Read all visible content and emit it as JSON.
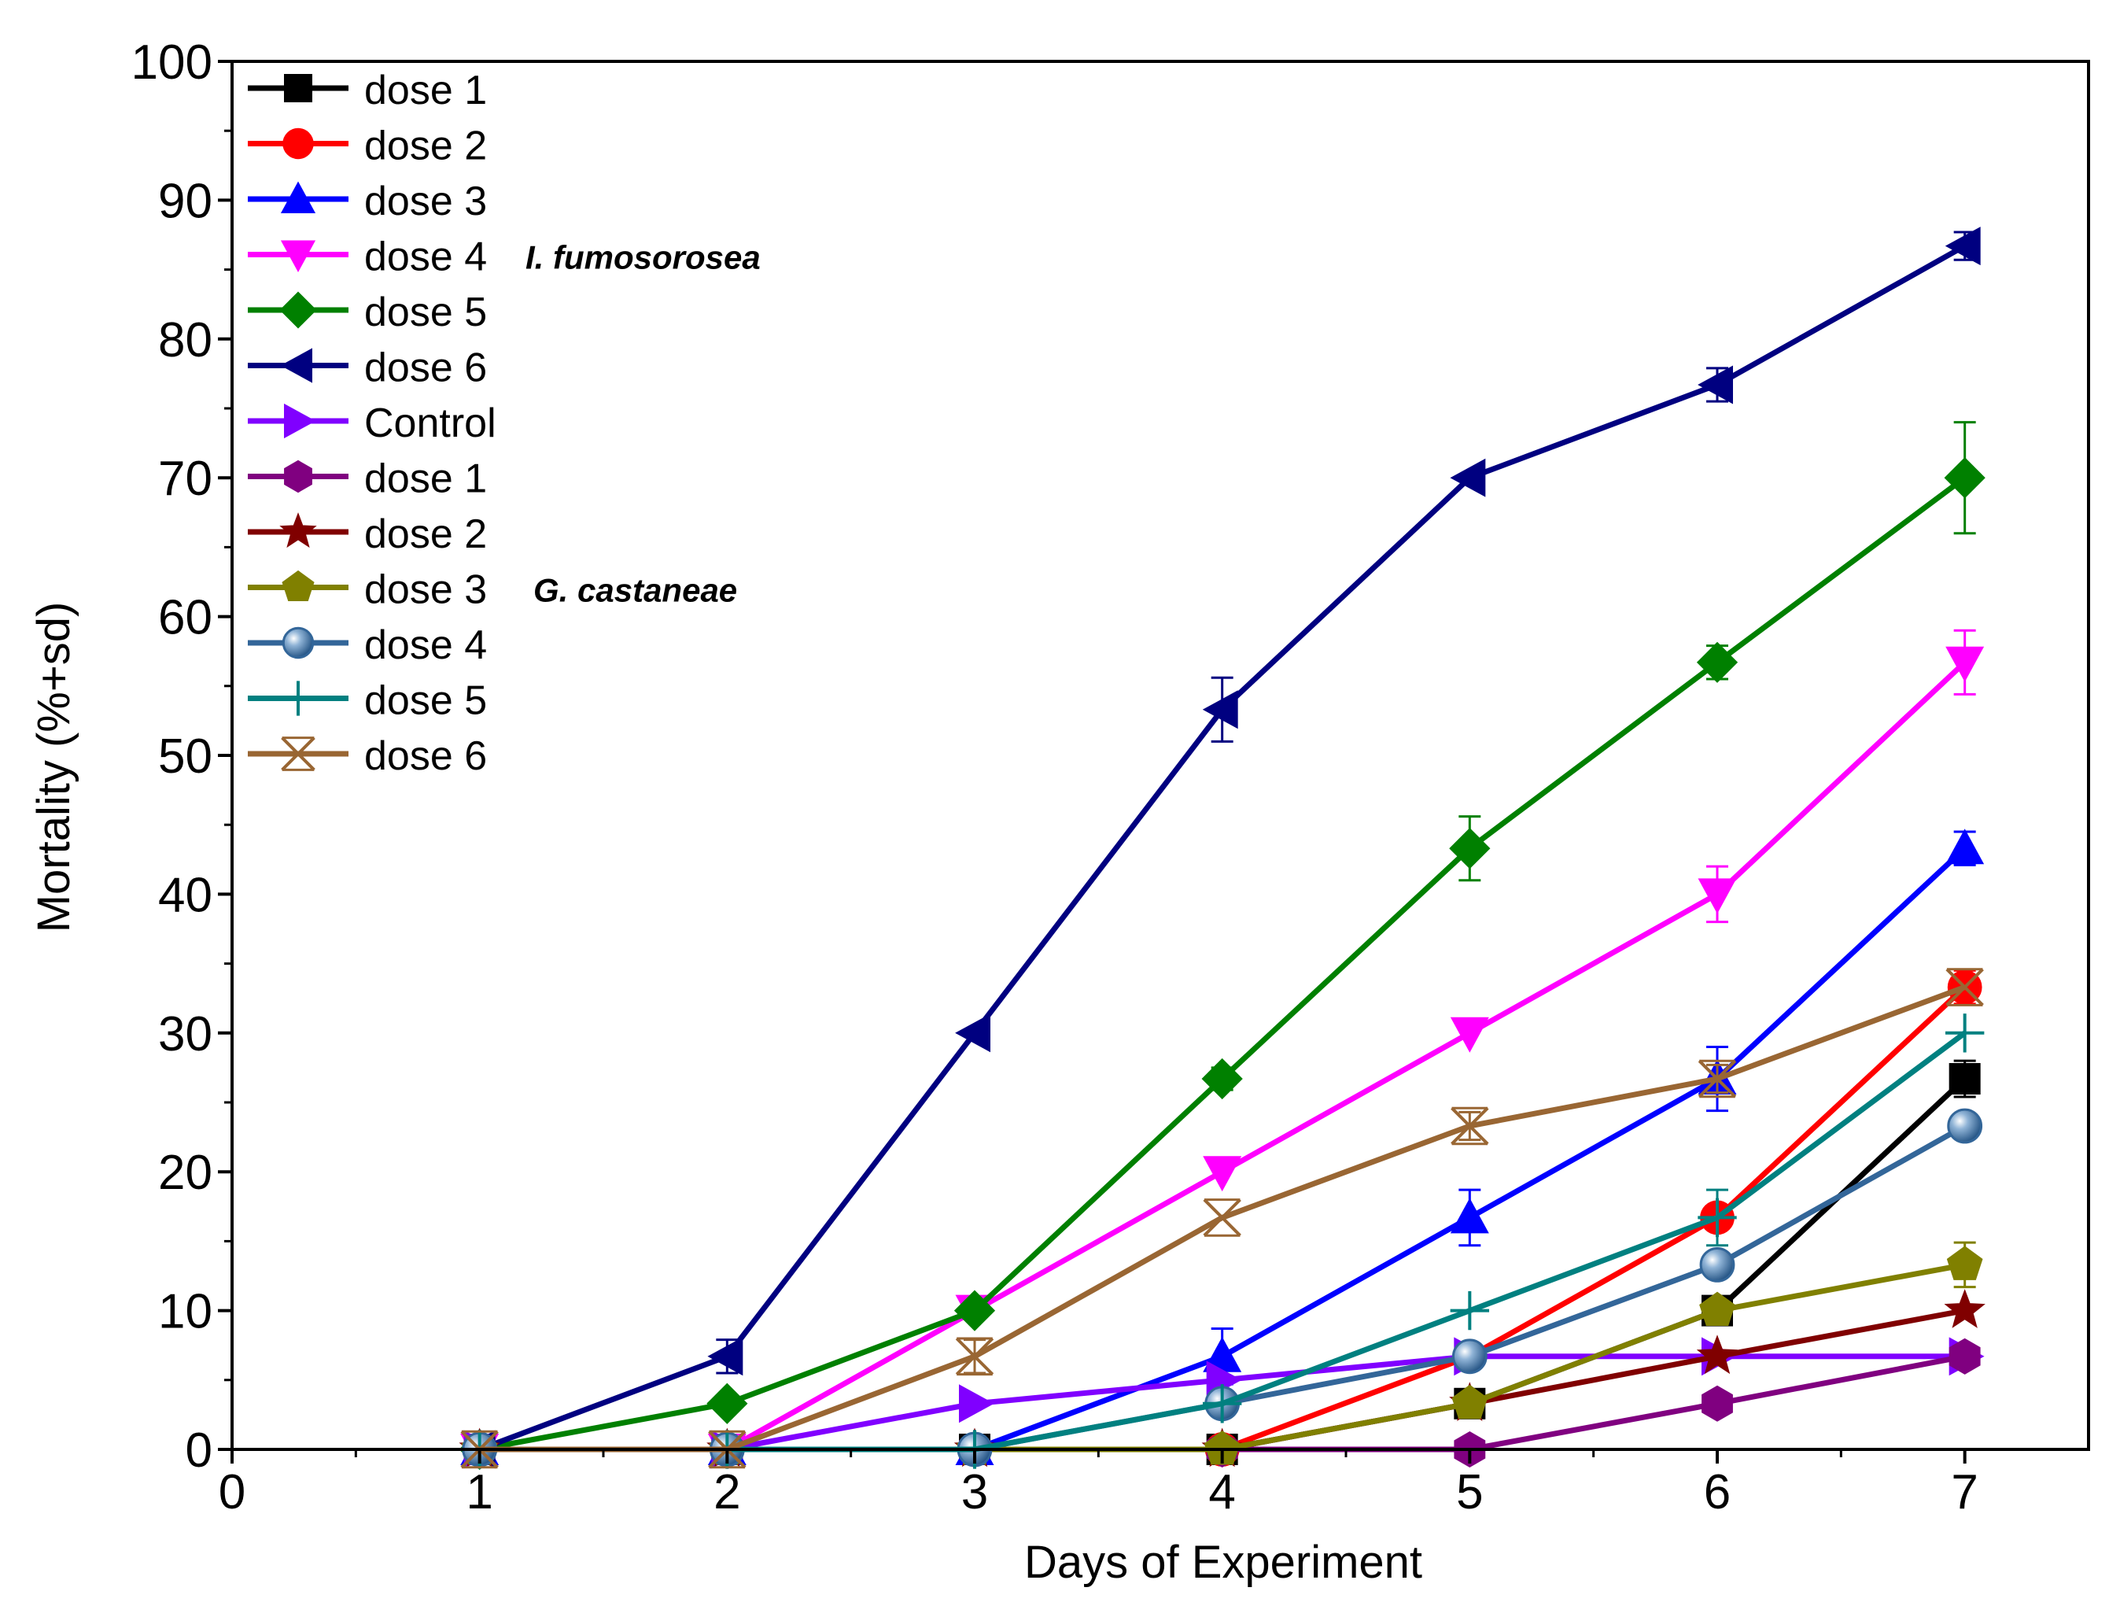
{
  "chart_data": {
    "type": "line",
    "xlabel": "Days of Experiment",
    "ylabel": "Mortality (%+sd)",
    "xlim": [
      0,
      7.5
    ],
    "ylim": [
      0,
      100
    ],
    "x_ticks": [
      "0",
      "1",
      "2",
      "3",
      "4",
      "5",
      "6",
      "7"
    ],
    "y_ticks": [
      "0",
      "10",
      "20",
      "30",
      "40",
      "50",
      "60",
      "70",
      "80",
      "90",
      "100"
    ],
    "x": [
      1,
      2,
      3,
      4,
      5,
      6,
      7
    ],
    "legend_position": "top-left",
    "groups": [
      {
        "label": "I. fumosorosea",
        "first_series": 0,
        "last_series": 6
      },
      {
        "label": "G. castaneae",
        "first_series": 7,
        "last_series": 12
      }
    ],
    "series": [
      {
        "name": "dose 1",
        "color": "#000000",
        "marker": "square",
        "values": [
          0,
          0,
          0,
          0,
          3.3,
          10,
          26.7
        ],
        "errors": [
          0,
          0,
          0,
          0,
          0,
          0,
          1.3
        ]
      },
      {
        "name": "dose 2",
        "color": "#ff0000",
        "marker": "circle",
        "values": [
          0,
          0,
          0,
          0,
          6.7,
          16.7,
          33.3
        ],
        "errors": [
          0,
          0,
          0,
          0,
          0,
          0,
          1.2
        ]
      },
      {
        "name": "dose 3",
        "color": "#0000ff",
        "marker": "triangle-up",
        "values": [
          0,
          0,
          0,
          6.7,
          16.7,
          26.7,
          43.3
        ],
        "errors": [
          0,
          0,
          0,
          2,
          2,
          2.3,
          1.2
        ]
      },
      {
        "name": "dose 4",
        "color": "#ff00ff",
        "marker": "triangle-down",
        "values": [
          0,
          0,
          10,
          20,
          30,
          40,
          56.7
        ],
        "errors": [
          0,
          0,
          0,
          0,
          0,
          2,
          2.3
        ]
      },
      {
        "name": "dose 5",
        "color": "#008000",
        "marker": "diamond",
        "values": [
          0,
          3.3,
          10,
          26.7,
          43.3,
          56.7,
          70
        ],
        "errors": [
          0,
          0,
          0,
          0.8,
          2.3,
          1.2,
          4
        ]
      },
      {
        "name": "dose 6",
        "color": "#000080",
        "marker": "triangle-left",
        "values": [
          0,
          6.7,
          30,
          53.3,
          70,
          76.7,
          86.7
        ],
        "errors": [
          0,
          1.2,
          0,
          2.3,
          0,
          1.2,
          1
        ]
      },
      {
        "name": "Control",
        "color": "#8000ff",
        "marker": "triangle-right",
        "values": [
          0,
          0,
          3.3,
          5,
          6.7,
          6.7,
          6.7
        ],
        "errors": [
          0,
          0,
          0,
          0,
          0,
          0,
          0
        ]
      },
      {
        "name": "dose 1",
        "color": "#800080",
        "marker": "hexagon",
        "values": [
          0,
          0,
          0,
          0,
          0,
          3.3,
          6.7
        ],
        "errors": [
          0,
          0,
          0,
          0,
          0,
          0,
          0
        ]
      },
      {
        "name": "dose 2",
        "color": "#800000",
        "marker": "star",
        "values": [
          0,
          0,
          0,
          0,
          3.3,
          6.7,
          10
        ],
        "errors": [
          0,
          0,
          0,
          0,
          0,
          0,
          0
        ]
      },
      {
        "name": "dose 3",
        "color": "#808000",
        "marker": "pentagon",
        "values": [
          0,
          0,
          0,
          0,
          3.3,
          10,
          13.3
        ],
        "errors": [
          0,
          0,
          0,
          0,
          0,
          0,
          1.6
        ]
      },
      {
        "name": "dose 4",
        "color": "#336699",
        "marker": "sphere",
        "values": [
          0,
          0,
          0,
          3.3,
          6.7,
          13.3,
          23.3
        ],
        "errors": [
          0,
          0,
          0,
          0,
          0,
          0,
          0
        ]
      },
      {
        "name": "dose 5",
        "color": "#008080",
        "marker": "plus",
        "values": [
          0,
          0,
          0,
          3.3,
          10,
          16.7,
          30
        ],
        "errors": [
          0,
          0,
          0,
          0,
          0,
          2,
          0
        ]
      },
      {
        "name": "dose 6",
        "color": "#996633",
        "marker": "x",
        "values": [
          0,
          0,
          6.7,
          16.7,
          23.3,
          26.7,
          33.3
        ],
        "errors": [
          0,
          0,
          1.2,
          0,
          1,
          1,
          0
        ]
      }
    ]
  }
}
